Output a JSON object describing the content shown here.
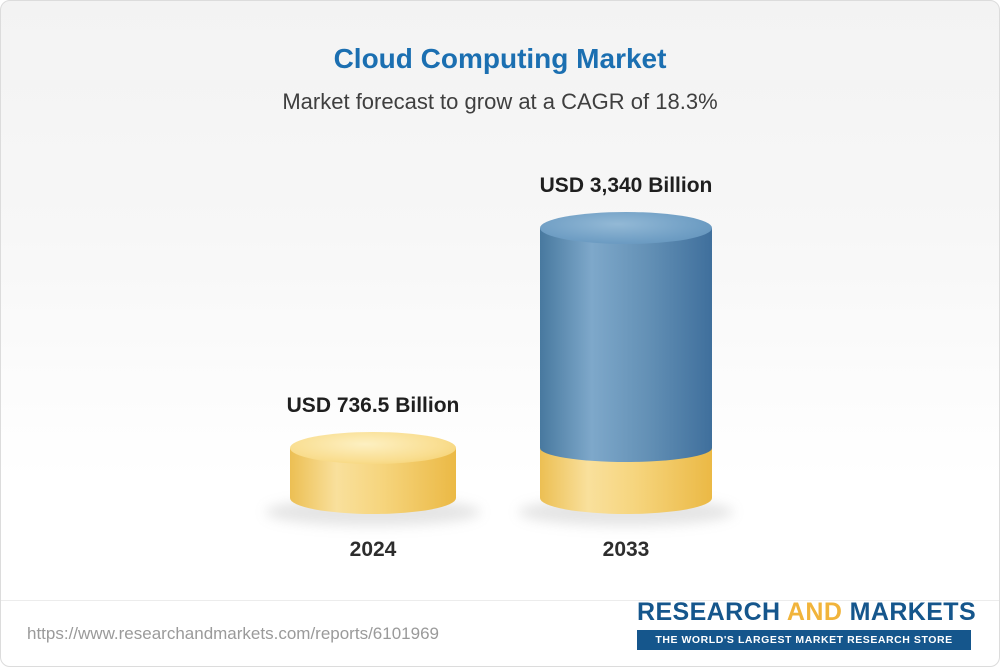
{
  "page": {
    "title": "Cloud Computing Market",
    "subtitle": "Market forecast to grow at a CAGR of 18.3%"
  },
  "chart_data": {
    "type": "bar",
    "title": "Cloud Computing Market",
    "subtitle": "Market forecast to grow at a CAGR of 18.3%",
    "categories": [
      "2024",
      "2033"
    ],
    "values": [
      736.5,
      3340
    ],
    "value_labels": [
      "USD 736.5 Billion",
      "USD 3,340 Billion"
    ],
    "unit": "USD Billion",
    "cagr_percent": 18.3,
    "ylim": [
      0,
      3340
    ],
    "legend_position": "none",
    "grid": false,
    "bar_style": "3d-cylinder",
    "colors": {
      "bar_2024": "#f5cd67",
      "bar_2033": "#55859f",
      "bar_2033_base": "#f5cd67"
    },
    "notes": "2033 cylinder is blue with a yellow base segment equal to the 2024 value"
  },
  "footer": {
    "url": "https://www.researchandmarkets.com/reports/6101969",
    "logo": {
      "research": "RESEARCH",
      "and": " AND ",
      "markets": "MARKETS",
      "tagline": "THE WORLD'S LARGEST MARKET RESEARCH STORE"
    }
  },
  "colors": {
    "title_blue": "#1b6fb1",
    "logo_blue": "#15568c",
    "logo_gold": "#f1b43b"
  }
}
